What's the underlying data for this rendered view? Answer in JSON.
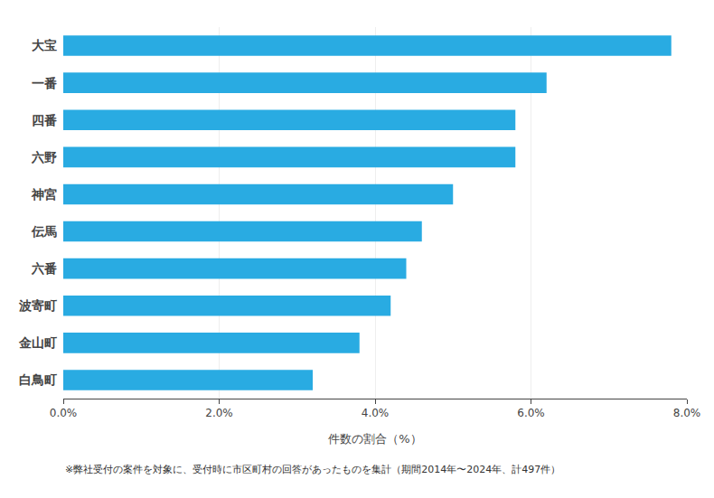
{
  "chart_data": {
    "type": "bar",
    "orientation": "horizontal",
    "categories": [
      "大宝",
      "一番",
      "四番",
      "六野",
      "神宮",
      "伝馬",
      "六番",
      "波寄町",
      "金山町",
      "白鳥町"
    ],
    "values": [
      7.8,
      6.2,
      5.8,
      5.8,
      5.0,
      4.6,
      4.4,
      4.2,
      3.8,
      3.2
    ],
    "color": "#29ABE2",
    "xlabel": "件数の割合（%）",
    "xlim": [
      0,
      8.0
    ],
    "xticks": [
      {
        "value": 0.0,
        "label": "0.0%"
      },
      {
        "value": 2.0,
        "label": "2.0%"
      },
      {
        "value": 4.0,
        "label": "4.0%"
      },
      {
        "value": 6.0,
        "label": "6.0%"
      },
      {
        "value": 8.0,
        "label": "8.0%"
      }
    ],
    "grid": true,
    "annotations": [
      "※弊社受付の案件を対象に、受付時に市区町村の回答があったものを集計（期間2014年〜2024年、計497件）"
    ]
  }
}
